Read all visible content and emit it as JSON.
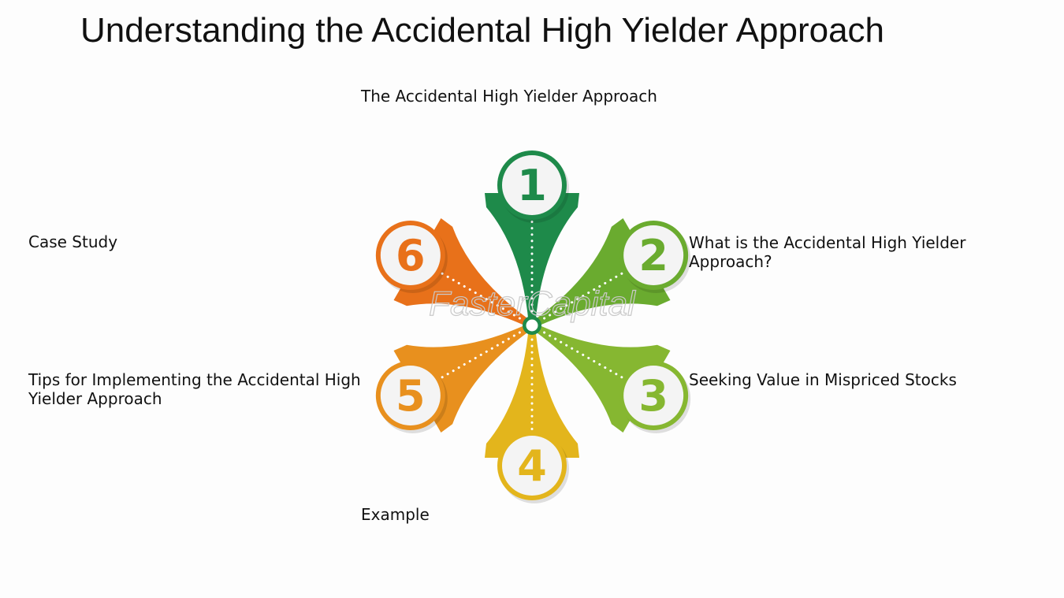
{
  "title": "Understanding the Accidental High Yielder Approach",
  "watermark": "FasterCapital",
  "items": [
    {
      "number": "1",
      "label": "The Accidental High Yielder Approach",
      "color": "#1e8a4a"
    },
    {
      "number": "2",
      "label": "What is the Accidental High Yielder Approach?",
      "color": "#6aab2f"
    },
    {
      "number": "3",
      "label": "Seeking Value in Mispriced Stocks",
      "color": "#86b731"
    },
    {
      "number": "4",
      "label": "Example",
      "color": "#e3b51c"
    },
    {
      "number": "5",
      "label": "Tips for Implementing the Accidental High Yielder Approach",
      "color": "#e8901e"
    },
    {
      "number": "6",
      "label": "Case Study",
      "color": "#e8711a"
    }
  ]
}
